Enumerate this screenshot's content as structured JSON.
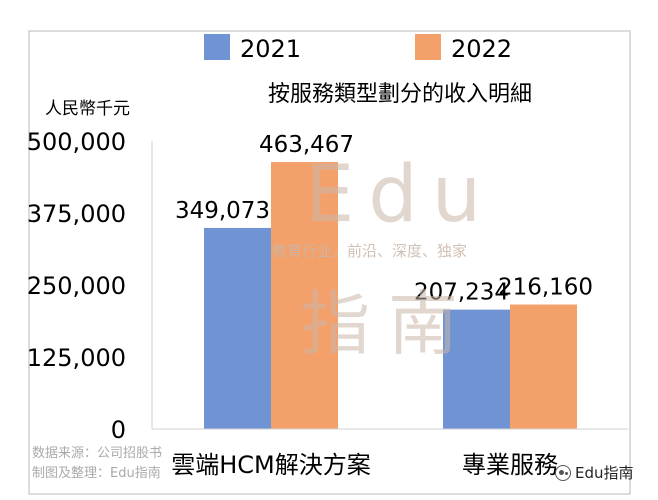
{
  "chart_data": {
    "type": "bar",
    "title": "按服務類型劃分的收入明細",
    "ylabel": "人民幣千元",
    "categories": [
      "雲端HCM解決方案",
      "專業服務"
    ],
    "series": [
      {
        "name": "2021",
        "values": [
          349073,
          207234
        ],
        "color": "#6f93d3",
        "labels": [
          "349,073",
          "207,234"
        ]
      },
      {
        "name": "2022",
        "values": [
          463467,
          216160
        ],
        "color": "#f4a06b",
        "labels": [
          "463,467",
          "216,160"
        ]
      }
    ],
    "ylim": [
      0,
      500000
    ],
    "yticks": [
      0,
      125000,
      250000,
      375000,
      500000
    ],
    "ytick_labels": [
      "0",
      "125,000",
      "250,000",
      "375,000",
      "500,000"
    ],
    "legend": "top",
    "grid": false
  },
  "watermark": {
    "big_text_1": "Edu",
    "big_text_2": "指南",
    "small_text": "教育行业，前沿、深度、独家"
  },
  "source": {
    "line1": "数据来源：公司招股书",
    "line2": "制图及整理：Edu指南"
  },
  "brand": "Edu指南"
}
